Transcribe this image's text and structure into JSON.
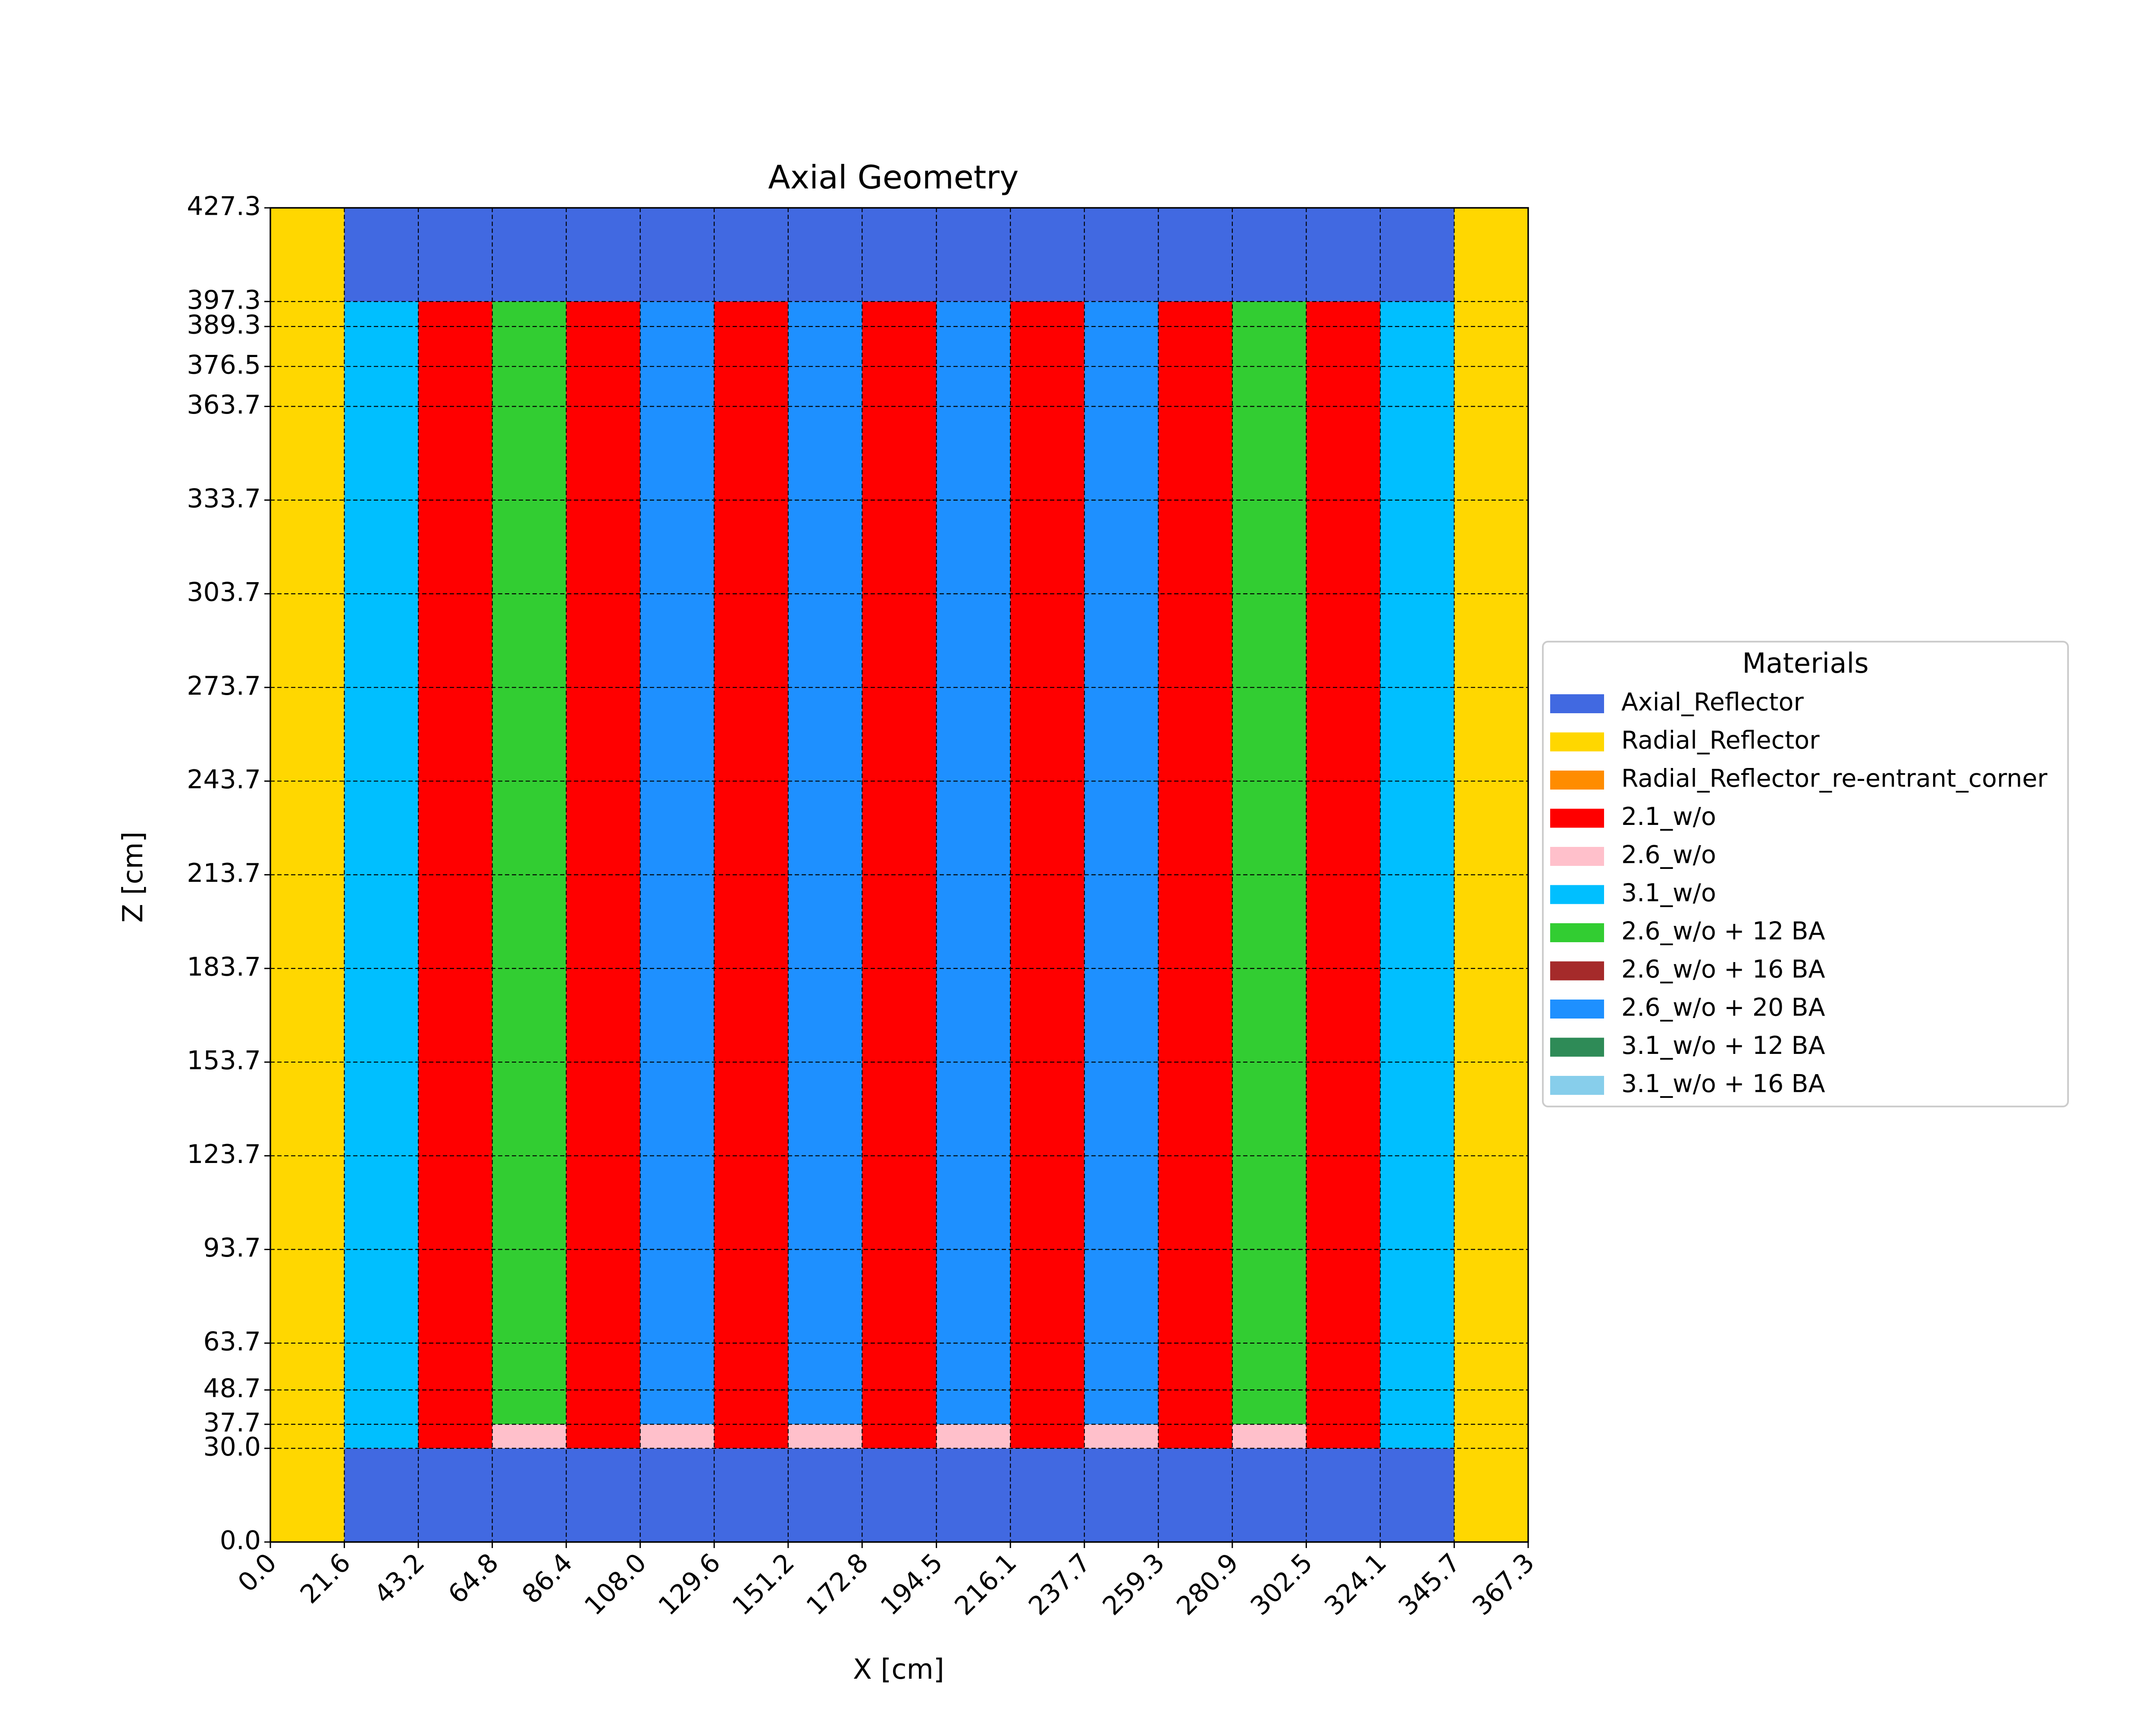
{
  "chart_data": {
    "type": "heatmap",
    "title": "Axial Geometry",
    "xlabel": "X [cm]",
    "ylabel": "Z [cm]",
    "xlim": [
      0,
      367.3
    ],
    "ylim": [
      0,
      427.3
    ],
    "grid": true,
    "x_ticks": [
      "0.0",
      "21.6",
      "43.2",
      "64.8",
      "86.4",
      "108.0",
      "129.6",
      "151.2",
      "172.8",
      "194.5",
      "216.1",
      "237.7",
      "259.3",
      "280.9",
      "302.5",
      "324.1",
      "345.7",
      "367.3"
    ],
    "y_ticks": [
      "0.0",
      "30.0",
      "37.7",
      "48.7",
      "63.7",
      "93.7",
      "123.7",
      "153.7",
      "183.7",
      "213.7",
      "243.7",
      "273.7",
      "303.7",
      "333.7",
      "363.7",
      "376.5",
      "389.3",
      "397.3",
      "427.3"
    ],
    "legend": {
      "title": "Materials",
      "position": "right",
      "entries": [
        {
          "label": "Axial_Reflector",
          "color": "#4169e1"
        },
        {
          "label": "Radial_Reflector",
          "color": "#ffd700"
        },
        {
          "label": "Radial_Reflector_re-entrant_corner",
          "color": "#ff8c00"
        },
        {
          "label": "2.1_w/o",
          "color": "#ff0000"
        },
        {
          "label": "2.6_w/o",
          "color": "#ffc0cb"
        },
        {
          "label": "3.1_w/o",
          "color": "#00bfff"
        },
        {
          "label": "2.6_w/o + 12 BA",
          "color": "#32cd32"
        },
        {
          "label": "2.6_w/o + 16 BA",
          "color": "#a52a2a"
        },
        {
          "label": "2.6_w/o + 20 BA",
          "color": "#1e90ff"
        },
        {
          "label": "3.1_w/o + 12 BA",
          "color": "#2e8b57"
        },
        {
          "label": "3.1_w/o + 16 BA",
          "color": "#87ceeb"
        }
      ]
    },
    "regions": [
      {
        "x": [
          0,
          21.6
        ],
        "z": [
          0,
          427.3
        ],
        "material": "Radial_Reflector"
      },
      {
        "x": [
          345.7,
          367.3
        ],
        "z": [
          0,
          427.3
        ],
        "material": "Radial_Reflector"
      },
      {
        "x": [
          21.6,
          345.7
        ],
        "z": [
          397.3,
          427.3
        ],
        "material": "Axial_Reflector"
      },
      {
        "x": [
          21.6,
          345.7
        ],
        "z": [
          0,
          30.0
        ],
        "material": "Axial_Reflector"
      },
      {
        "x": [
          21.6,
          43.2
        ],
        "z": [
          30.0,
          397.3
        ],
        "material": "3.1_w/o"
      },
      {
        "x": [
          43.2,
          64.8
        ],
        "z": [
          30.0,
          397.3
        ],
        "material": "2.1_w/o"
      },
      {
        "x": [
          64.8,
          86.4
        ],
        "z": [
          37.7,
          397.3
        ],
        "material": "2.6_w/o + 12 BA"
      },
      {
        "x": [
          64.8,
          86.4
        ],
        "z": [
          30.0,
          37.7
        ],
        "material": "2.6_w/o"
      },
      {
        "x": [
          86.4,
          108.0
        ],
        "z": [
          30.0,
          397.3
        ],
        "material": "2.1_w/o"
      },
      {
        "x": [
          108.0,
          129.6
        ],
        "z": [
          37.7,
          397.3
        ],
        "material": "2.6_w/o + 20 BA"
      },
      {
        "x": [
          108.0,
          129.6
        ],
        "z": [
          30.0,
          37.7
        ],
        "material": "2.6_w/o"
      },
      {
        "x": [
          129.6,
          151.2
        ],
        "z": [
          30.0,
          397.3
        ],
        "material": "2.1_w/o"
      },
      {
        "x": [
          151.2,
          172.8
        ],
        "z": [
          37.7,
          397.3
        ],
        "material": "2.6_w/o + 20 BA"
      },
      {
        "x": [
          151.2,
          172.8
        ],
        "z": [
          30.0,
          37.7
        ],
        "material": "2.6_w/o"
      },
      {
        "x": [
          172.8,
          194.5
        ],
        "z": [
          30.0,
          397.3
        ],
        "material": "2.1_w/o"
      },
      {
        "x": [
          194.5,
          216.1
        ],
        "z": [
          37.7,
          397.3
        ],
        "material": "2.6_w/o + 20 BA"
      },
      {
        "x": [
          194.5,
          216.1
        ],
        "z": [
          30.0,
          37.7
        ],
        "material": "2.6_w/o"
      },
      {
        "x": [
          216.1,
          237.7
        ],
        "z": [
          30.0,
          397.3
        ],
        "material": "2.1_w/o"
      },
      {
        "x": [
          237.7,
          259.3
        ],
        "z": [
          37.7,
          397.3
        ],
        "material": "2.6_w/o + 20 BA"
      },
      {
        "x": [
          237.7,
          259.3
        ],
        "z": [
          30.0,
          37.7
        ],
        "material": "2.6_w/o"
      },
      {
        "x": [
          259.3,
          280.9
        ],
        "z": [
          30.0,
          397.3
        ],
        "material": "2.1_w/o"
      },
      {
        "x": [
          280.9,
          302.5
        ],
        "z": [
          37.7,
          397.3
        ],
        "material": "2.6_w/o + 12 BA"
      },
      {
        "x": [
          280.9,
          302.5
        ],
        "z": [
          30.0,
          37.7
        ],
        "material": "2.6_w/o"
      },
      {
        "x": [
          302.5,
          324.1
        ],
        "z": [
          30.0,
          397.3
        ],
        "material": "2.1_w/o"
      },
      {
        "x": [
          324.1,
          345.7
        ],
        "z": [
          30.0,
          397.3
        ],
        "material": "3.1_w/o"
      }
    ]
  }
}
